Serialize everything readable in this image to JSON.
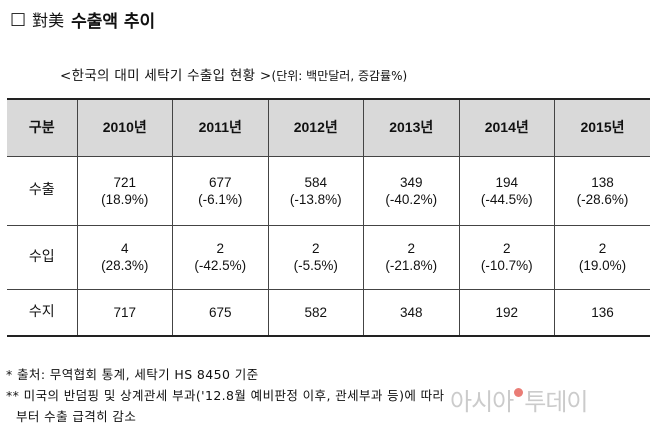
{
  "heading": {
    "checkbox": "□",
    "prefix": "對美",
    "title": "수출액 추이"
  },
  "table_caption": {
    "title": "<한국의 대미 세탁기 수출입 현황 >",
    "unit": "(단위: 백만달러, 증감률%)"
  },
  "table": {
    "header": [
      "구분",
      "2010년",
      "2011년",
      "2012년",
      "2013년",
      "2014년",
      "2015년"
    ],
    "rows": [
      {
        "label": "수출",
        "cells": [
          {
            "value": "721",
            "change": "(18.9%)"
          },
          {
            "value": "677",
            "change": "(-6.1%)"
          },
          {
            "value": "584",
            "change": "(-13.8%)"
          },
          {
            "value": "349",
            "change": "(-40.2%)"
          },
          {
            "value": "194",
            "change": "(-44.5%)"
          },
          {
            "value": "138",
            "change": "(-28.6%)"
          }
        ]
      },
      {
        "label": "수입",
        "cells": [
          {
            "value": "4",
            "change": "(28.3%)"
          },
          {
            "value": "2",
            "change": "(-42.5%)"
          },
          {
            "value": "2",
            "change": "(-5.5%)"
          },
          {
            "value": "2",
            "change": "(-21.8%)"
          },
          {
            "value": "2",
            "change": "(-10.7%)"
          },
          {
            "value": "2",
            "change": "(19.0%)"
          }
        ]
      },
      {
        "label": "수지",
        "cells": [
          {
            "value": "717"
          },
          {
            "value": "675"
          },
          {
            "value": "582"
          },
          {
            "value": "348"
          },
          {
            "value": "192"
          },
          {
            "value": "136"
          }
        ]
      }
    ]
  },
  "notes": {
    "source": "* 출처: 무역협회 통계, 세탁기 HS 8450 기준",
    "note2_line1": "** 미국의 반덤핑 및 상계관세 부과('12.8월 예비판정 이후, 관세부과 등)에 따라",
    "note2_line2": "부터 수출 급격히 감소"
  },
  "watermark": {
    "before": "아시아",
    "after": "투데이"
  }
}
